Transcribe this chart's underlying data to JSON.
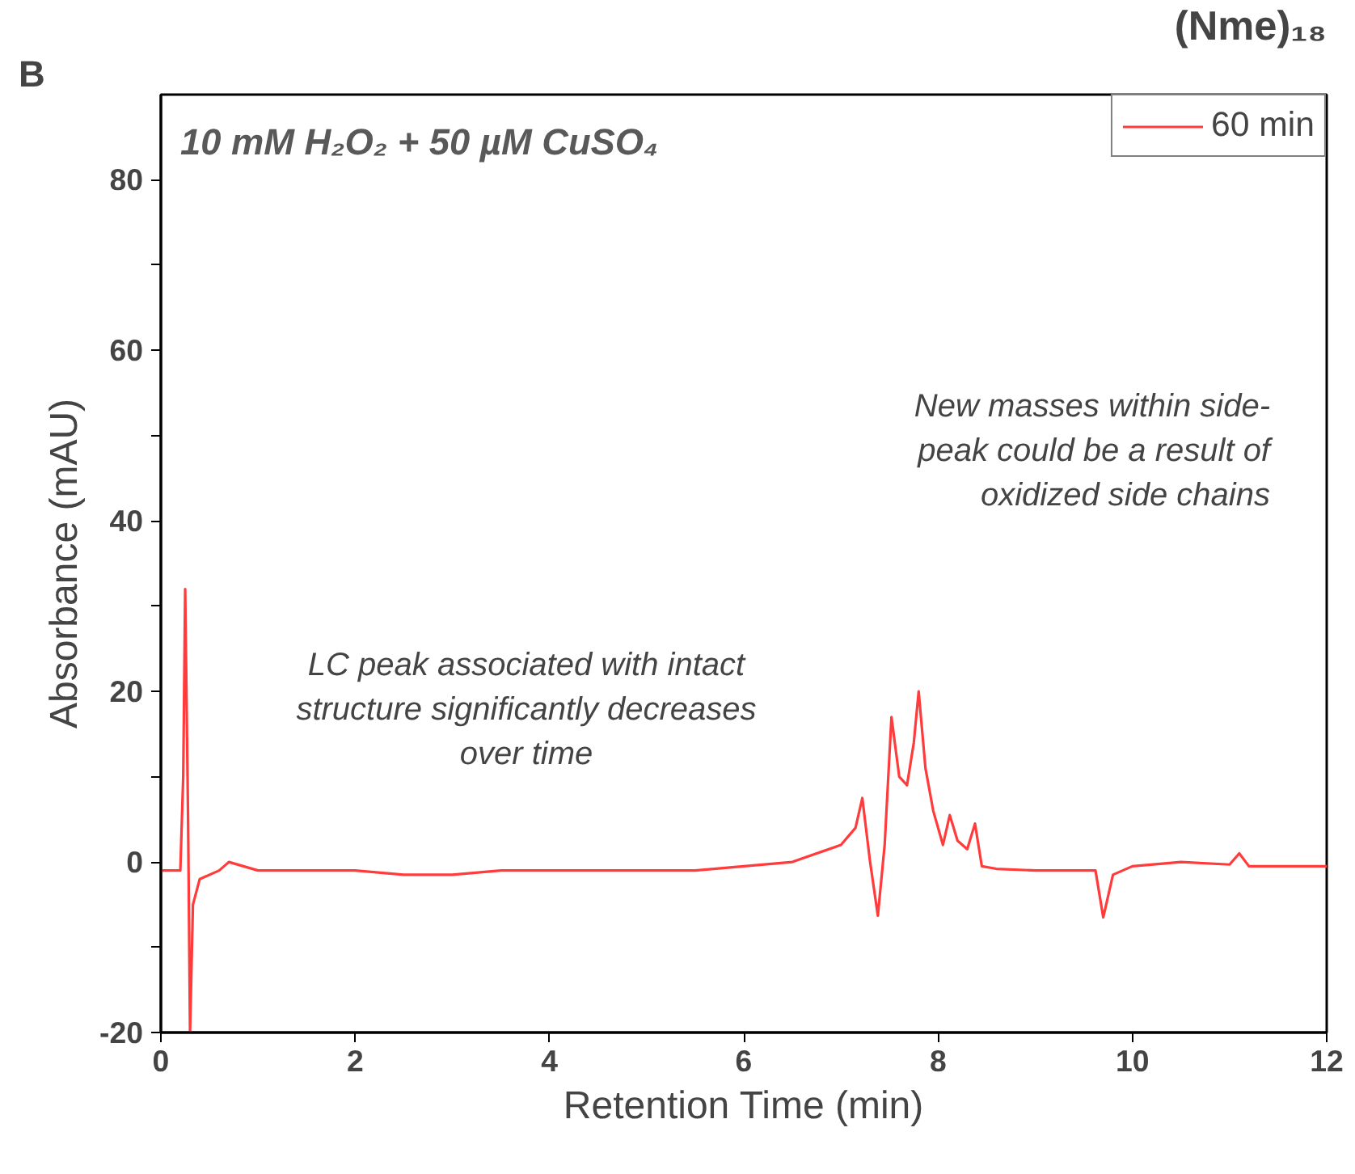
{
  "chart_data": {
    "type": "line",
    "title": "10 mM H₂O₂ + 50 µM CuSO₄",
    "xlabel": "Retention Time (min)",
    "ylabel": "Absorbance (mAU)",
    "x": [
      0,
      0.2,
      0.23,
      0.25,
      0.28,
      0.3,
      0.33,
      0.4,
      0.6,
      0.7,
      1,
      1.5,
      2,
      2.5,
      3,
      3.5,
      4,
      4.5,
      5,
      5.5,
      6,
      6.5,
      7.0,
      7.15,
      7.22,
      7.3,
      7.38,
      7.45,
      7.52,
      7.6,
      7.68,
      7.75,
      7.8,
      7.87,
      7.95,
      8.05,
      8.12,
      8.2,
      8.3,
      8.38,
      8.45,
      8.6,
      9,
      9.5,
      9.62,
      9.7,
      9.8,
      10,
      10.5,
      11,
      11.1,
      11.2,
      11.5,
      12
    ],
    "series": [
      {
        "name": "60 min",
        "color": "#ff3b3b",
        "values": [
          -1,
          -1,
          10,
          32,
          5,
          -20,
          -5,
          -2,
          -1,
          0,
          -1,
          -1,
          -1,
          -1.5,
          -1.5,
          -1,
          -1,
          -1,
          -1,
          -1,
          -0.5,
          0,
          2,
          4,
          7.5,
          0,
          -6.3,
          2,
          17,
          10,
          9,
          14,
          20,
          11,
          6,
          2,
          5.5,
          2.5,
          1.5,
          4.5,
          -0.5,
          -0.8,
          -1,
          -1,
          -1,
          -6.5,
          -1.5,
          -0.5,
          0,
          -0.3,
          1,
          -0.5,
          -0.5,
          -0.5
        ]
      }
    ],
    "xlim": [
      0,
      12
    ],
    "xticks": [
      0,
      2,
      4,
      6,
      8,
      10,
      12
    ],
    "ylim": [
      -20,
      90
    ],
    "yticks": [
      -20,
      {
        "value": -10,
        "label": null
      },
      0,
      {
        "value": 10,
        "label": null
      },
      20,
      {
        "value": 30,
        "label": null
      },
      40,
      {
        "value": 50,
        "label": null
      },
      60,
      {
        "value": 70,
        "label": null
      },
      80
    ],
    "legend": "top right",
    "grid": false,
    "line_style": "solid",
    "marker": "none",
    "annotations": [
      "B",
      "(Nme)₁₈",
      "LC peak associated with intact\nstructure significantly decreases\nover time",
      "New masses within side-\npeak could be a result of\noxidized side chains"
    ]
  }
}
